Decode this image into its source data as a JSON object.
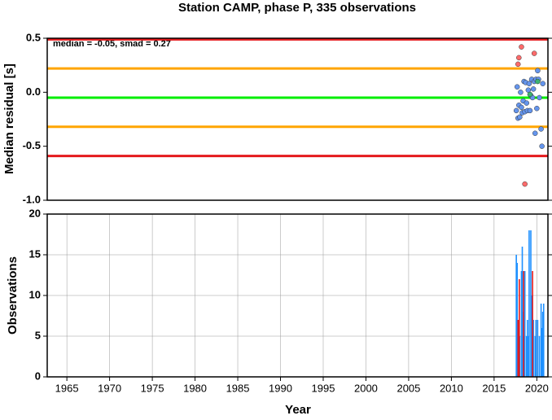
{
  "chart_data": [
    {
      "type": "scatter",
      "title": "Station CAMP, phase P, 335 observations",
      "ylabel": "Median residual [s]",
      "annotation": "median = -0.05, smad = 0.27",
      "xlim": [
        1962.7,
        2021.3
      ],
      "ylim": [
        -1.0,
        0.5
      ],
      "yticks": [
        {
          "value": 0.5,
          "label": "0.5"
        },
        {
          "value": 0.0,
          "label": "0.0"
        },
        {
          "value": -0.5,
          "label": "-0.5"
        },
        {
          "value": -1.0,
          "label": "-1.0"
        }
      ],
      "hlines": [
        {
          "value": 0.49,
          "color": "#e41a1c"
        },
        {
          "value": 0.22,
          "color": "#ffa500"
        },
        {
          "value": -0.05,
          "color": "#00ee00"
        },
        {
          "value": -0.32,
          "color": "#ffa500"
        },
        {
          "value": -0.59,
          "color": "#e41a1c"
        }
      ],
      "series": [
        {
          "color": "#6495ed",
          "x": [
            2017.6,
            2017.7,
            2017.8,
            2017.9,
            2018.0,
            2018.1,
            2018.2,
            2018.3,
            2018.4,
            2018.5,
            2018.6,
            2018.7,
            2018.8,
            2018.9,
            2019.0,
            2019.1,
            2019.2,
            2019.3,
            2019.4,
            2019.5,
            2019.6,
            2019.7,
            2019.8,
            2019.9,
            2020.0,
            2020.1,
            2020.2,
            2020.3,
            2020.5,
            2020.6,
            2020.7
          ],
          "values": [
            -0.17,
            0.05,
            -0.24,
            -0.12,
            -0.23,
            0.0,
            -0.14,
            -0.19,
            -0.08,
            0.1,
            -0.18,
            0.09,
            -0.1,
            -0.17,
            0.02,
            0.08,
            -0.17,
            -0.03,
            0.12,
            -0.05,
            0.03,
            0.1,
            -0.38,
            0.12,
            -0.15,
            0.2,
            0.12,
            -0.05,
            -0.34,
            -0.5,
            0.08
          ]
        },
        {
          "color": "#3cb371",
          "x": [
            2019.2,
            2020.1
          ],
          "values": [
            -0.02,
            0.1
          ]
        },
        {
          "color": "#ff6b6b",
          "x": [
            2017.8,
            2017.9,
            2018.2,
            2019.7,
            2018.6
          ],
          "values": [
            0.26,
            0.32,
            0.42,
            0.36,
            -0.85
          ]
        }
      ]
    },
    {
      "type": "bar",
      "ylabel": "Observations",
      "xlabel": "Year",
      "xlim": [
        1962.7,
        2021.3
      ],
      "ylim": [
        0,
        20
      ],
      "yticks": [
        0,
        5,
        10,
        15,
        20
      ],
      "xticks": [
        1965,
        1970,
        1975,
        1980,
        1985,
        1990,
        1995,
        2000,
        2005,
        2010,
        2015,
        2020
      ],
      "grid": true,
      "series": [
        {
          "color": "#1e90ff",
          "x": [
            2017.6,
            2017.7,
            2017.9,
            2018.0,
            2018.2,
            2018.3,
            2018.4,
            2018.5,
            2018.6,
            2018.8,
            2018.9,
            2019.0,
            2019.1,
            2019.3,
            2019.4,
            2019.6,
            2019.8,
            2019.9,
            2020.1,
            2020.3,
            2020.5,
            2020.6,
            2020.7,
            2020.8
          ],
          "values": [
            15,
            14,
            7,
            5,
            13,
            16,
            8,
            5,
            13,
            5,
            7,
            5,
            18,
            18,
            10,
            7,
            5,
            7,
            7,
            5,
            9,
            6,
            8,
            9
          ]
        },
        {
          "color": "#e41a1c",
          "x": [
            2017.8,
            2017.95,
            2018.45,
            2019.5
          ],
          "values": [
            7,
            12,
            13,
            13
          ]
        }
      ]
    }
  ]
}
